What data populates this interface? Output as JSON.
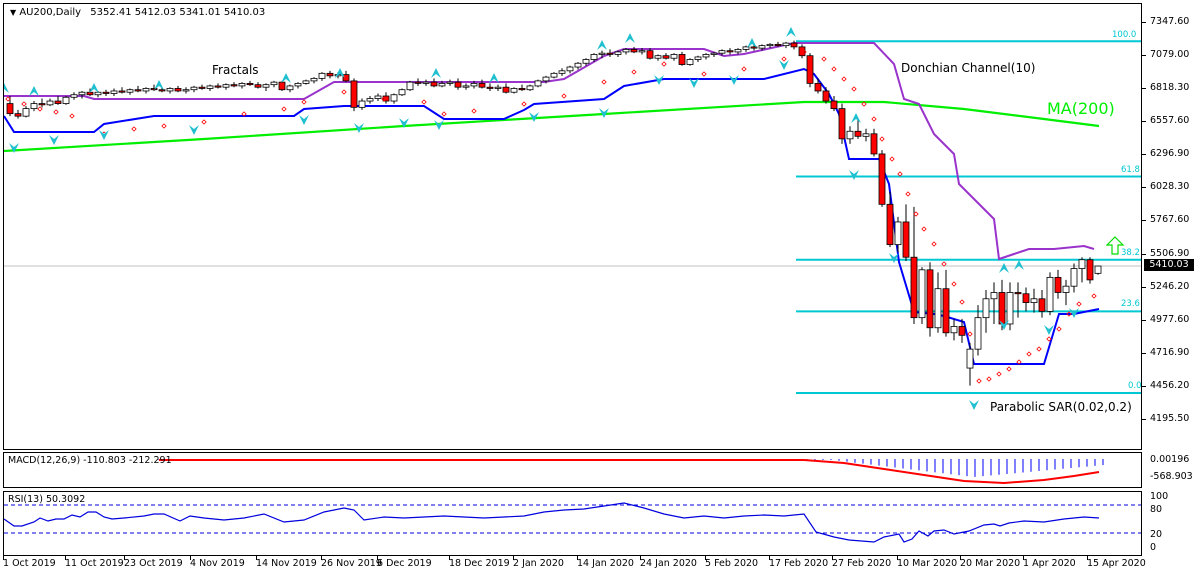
{
  "header": {
    "symbol_label": "AU200,Daily",
    "ohlc": "5352.41 5412.03 5341.01 5410.03",
    "collapse_icon": "triangle-down-icon"
  },
  "annotations": {
    "fractals": "Fractals",
    "donchian": "Donchian Channel(10)",
    "ma": "MA(200)",
    "psar": "Parabolic SAR(0.02,0.2)",
    "arrow": "up-arrow-icon"
  },
  "fib_levels": [
    {
      "label": "100.0",
      "price": 7195
    },
    {
      "label": "61.8",
      "price": 6121
    },
    {
      "label": "38.2",
      "price": 5460
    },
    {
      "label": "23.6",
      "price": 5050
    },
    {
      "label": "0.0",
      "price": 4402
    }
  ],
  "price_axis": {
    "ticks": [
      "7347.60",
      "7079.00",
      "6818.30",
      "6557.60",
      "6296.90",
      "6028.30",
      "5767.60",
      "5506.90",
      "5246.20",
      "4977.60",
      "4716.90",
      "4456.20",
      "4195.50"
    ],
    "current_price": "5410.03"
  },
  "macd": {
    "label": "MACD(12,26,9) -110.803 -212.291",
    "axis": [
      "0.00196",
      "-568.903"
    ]
  },
  "rsi": {
    "label": "RSI(13) 50.3092",
    "axis": [
      "100",
      "80",
      "20",
      "0"
    ]
  },
  "time_axis": {
    "labels": [
      "1 Oct 2019",
      "11 Oct 2019",
      "23 Oct 2019",
      "4 Nov 2019",
      "14 Nov 2019",
      "26 Nov 2019",
      "6 Dec 2019",
      "18 Dec 2019",
      "2 Jan 2020",
      "14 Jan 2020",
      "24 Jan 2020",
      "5 Feb 2020",
      "17 Feb 2020",
      "27 Feb 2020",
      "10 Mar 2020",
      "20 Mar 2020",
      "1 Apr 2020",
      "15 Apr 2020"
    ]
  },
  "colors": {
    "up_candle": "#ffffff",
    "down_candle": "#ff0000",
    "donchian_upper": "#9933cc",
    "donchian_lower": "#0000ff",
    "ma200": "#00ee00",
    "fib": "#00c8d2",
    "psar": "#ff0000",
    "fractal": "#20c0d0",
    "macd_signal": "#ff0000",
    "macd_hist": "#0000ff",
    "rsi_line": "#0000dd",
    "arrow": "#00dd00"
  },
  "chart_data": {
    "type": "candlestick",
    "title": "AU200, Daily",
    "last_bar": {
      "open": 5352.41,
      "high": 5412.03,
      "low": 5341.01,
      "close": 5410.03
    },
    "x_range": [
      "1 Oct 2019",
      "15 Apr 2020"
    ],
    "ylim": [
      4195.5,
      7347.6
    ],
    "indicators": {
      "ma200": {
        "start": 6320,
        "peak_feb": 6760,
        "end": 6520
      },
      "donchian_10": {
        "upper_last": 5530,
        "lower_last": 5010
      },
      "parabolic_sar": {
        "step": 0.02,
        "max": 0.2
      },
      "fibonacci": {
        "0.0": 4402,
        "23.6": 5050,
        "38.2": 5460,
        "61.8": 6121,
        "100.0": 7195
      },
      "macd": {
        "params": "12,26,9",
        "main": -110.803,
        "signal": -212.291,
        "ylim": [
          -568.903,
          0.00196
        ]
      },
      "rsi": {
        "period": 13,
        "value": 50.3092,
        "levels": [
          20,
          80
        ],
        "ylim": [
          0,
          100
        ]
      }
    },
    "price_path_approx": [
      {
        "date": "1 Oct 2019",
        "close": 6700
      },
      {
        "date": "11 Oct 2019",
        "close": 6620
      },
      {
        "date": "23 Oct 2019",
        "close": 6750
      },
      {
        "date": "4 Nov 2019",
        "close": 6770
      },
      {
        "date": "14 Nov 2019",
        "close": 6750
      },
      {
        "date": "26 Nov 2019",
        "close": 6850
      },
      {
        "date": "6 Dec 2019",
        "close": 6680
      },
      {
        "date": "18 Dec 2019",
        "close": 6800
      },
      {
        "date": "2 Jan 2020",
        "close": 6730
      },
      {
        "date": "14 Jan 2020",
        "close": 7000
      },
      {
        "date": "24 Jan 2020",
        "close": 7090
      },
      {
        "date": "5 Feb 2020",
        "close": 7050
      },
      {
        "date": "17 Feb 2020",
        "close": 7150
      },
      {
        "date": "27 Feb 2020",
        "close": 6450
      },
      {
        "date": "10 Mar 2020",
        "close": 5600
      },
      {
        "date": "20 Mar 2020",
        "close": 4550
      },
      {
        "date": "1 Apr 2020",
        "close": 5150
      },
      {
        "date": "15 Apr 2020",
        "close": 5410
      }
    ]
  }
}
